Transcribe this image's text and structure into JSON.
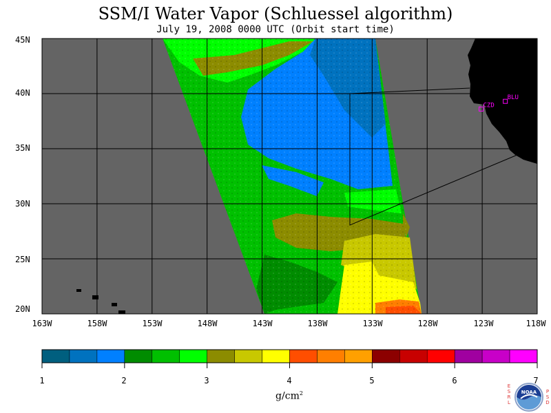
{
  "header": {
    "title": "SSM/I Water Vapor (Schluessel algorithm)",
    "subtitle": "July 19, 2008  0000 UTC  (Orbit start time)"
  },
  "map": {
    "lat_labels": [
      "45N",
      "40N",
      "35N",
      "30N",
      "25N",
      "20N"
    ],
    "lon_labels": [
      "163W",
      "158W",
      "153W",
      "148W",
      "143W",
      "138W",
      "133W",
      "128W",
      "123W",
      "118W"
    ],
    "stations": [
      {
        "name": "CZD",
        "lon": -123.1,
        "lat": 38.6
      },
      {
        "name": "BLU",
        "lon": -120.9,
        "lat": 39.3
      }
    ],
    "land_color": "#000000",
    "no_data_color": "#646464",
    "station_color": "#ff00ff"
  },
  "colorbar": {
    "colors": [
      "#005f7f",
      "#0072bf",
      "#0080ff",
      "#008c00",
      "#00c000",
      "#00ff00",
      "#8c8c00",
      "#c8c800",
      "#ffff00",
      "#ff4e00",
      "#ff7f00",
      "#ffa000",
      "#8c0000",
      "#c80000",
      "#ff0000",
      "#a000a0",
      "#c800c8",
      "#ff00ff"
    ],
    "tick_labels": [
      "1",
      "2",
      "3",
      "4",
      "5",
      "6",
      "7"
    ],
    "units": "g/cm",
    "units_exp": "2"
  },
  "logo": {
    "left_text": "ESRL",
    "right_text": "PSD",
    "center_text": "NOAA"
  }
}
